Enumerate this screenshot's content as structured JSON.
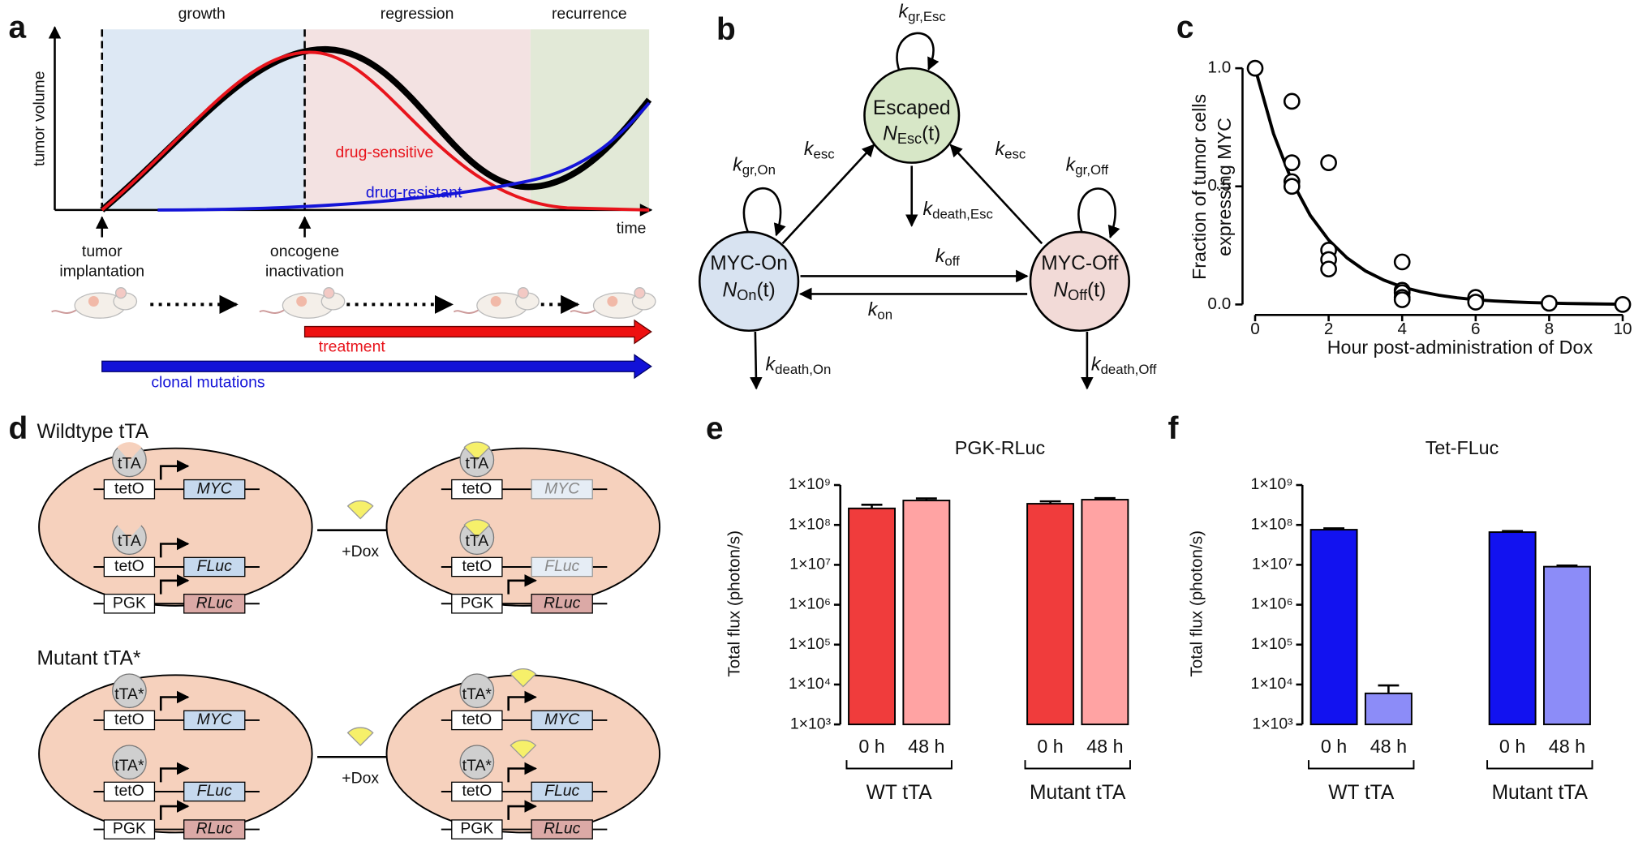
{
  "panel_a": {
    "letter": "a",
    "phases": [
      "growth",
      "regression",
      "recurrence"
    ],
    "y_label": "tumor volume",
    "x_label": "time",
    "curve_labels": [
      "drug-sensitive",
      "drug-resistant"
    ],
    "events": [
      [
        "tumor",
        "implantation"
      ],
      [
        "oncogene",
        "inactivation"
      ]
    ],
    "bars": [
      "treatment",
      "clonal mutations"
    ]
  },
  "panel_b": {
    "letter": "b",
    "nodes": [
      {
        "name": "Escaped",
        "pop": {
          "main": "N",
          "sub": "Esc",
          "tail": "(t)"
        }
      },
      {
        "name": "MYC-On",
        "pop": {
          "main": "N",
          "sub": "On",
          "tail": "(t)"
        }
      },
      {
        "name": "MYC-Off",
        "pop": {
          "main": "N",
          "sub": "Off",
          "tail": "(t)"
        }
      }
    ],
    "rates": [
      {
        "main": "k",
        "sub": "gr,Esc"
      },
      {
        "main": "k",
        "sub": "esc"
      },
      {
        "main": "k",
        "sub": "esc"
      },
      {
        "main": "k",
        "sub": "gr,On"
      },
      {
        "main": "k",
        "sub": "gr,Off"
      },
      {
        "main": "k",
        "sub": "death,Esc"
      },
      {
        "main": "k",
        "sub": "off"
      },
      {
        "main": "k",
        "sub": "on"
      },
      {
        "main": "k",
        "sub": "death,On"
      },
      {
        "main": "k",
        "sub": "death,Off"
      }
    ]
  },
  "panel_d": {
    "letter": "d",
    "dox": "+Dox",
    "groups": [
      {
        "title": "Wildtype tTA",
        "cells": [
          {
            "dox": false,
            "rows": [
              {
                "tf": "tTA",
                "notched": true,
                "promoter": "tetO",
                "gene": "MYC",
                "on": true,
                "color": "#c6d9ee"
              },
              {
                "tf": "tTA",
                "notched": true,
                "promoter": "tetO",
                "gene": "FLuc",
                "on": true,
                "color": "#c6d9ee"
              },
              {
                "promoter": "PGK",
                "gene": "RLuc",
                "on": true,
                "color": "#dba9a6"
              }
            ]
          },
          {
            "dox": true,
            "rows": [
              {
                "tf": "tTA",
                "notched": true,
                "promoter": "tetO",
                "gene": "MYC",
                "on": false,
                "color": "#c6d9ee"
              },
              {
                "tf": "tTA",
                "notched": true,
                "promoter": "tetO",
                "gene": "FLuc",
                "on": false,
                "color": "#c6d9ee"
              },
              {
                "promoter": "PGK",
                "gene": "RLuc",
                "on": true,
                "color": "#dba9a6"
              }
            ]
          }
        ]
      },
      {
        "title": "Mutant tTA*",
        "cells": [
          {
            "dox": false,
            "rows": [
              {
                "tf": "tTA*",
                "notched": false,
                "promoter": "tetO",
                "gene": "MYC",
                "on": true,
                "color": "#c6d9ee"
              },
              {
                "tf": "tTA*",
                "notched": false,
                "promoter": "tetO",
                "gene": "FLuc",
                "on": true,
                "color": "#c6d9ee"
              },
              {
                "promoter": "PGK",
                "gene": "RLuc",
                "on": true,
                "color": "#dba9a6"
              }
            ]
          },
          {
            "dox": true,
            "rows": [
              {
                "tf": "tTA*",
                "notched": false,
                "promoter": "tetO",
                "gene": "MYC",
                "on": true,
                "color": "#c6d9ee"
              },
              {
                "tf": "tTA*",
                "notched": false,
                "promoter": "tetO",
                "gene": "FLuc",
                "on": true,
                "color": "#c6d9ee"
              },
              {
                "promoter": "PGK",
                "gene": "RLuc",
                "on": true,
                "color": "#dba9a6"
              }
            ]
          }
        ]
      }
    ]
  },
  "chart_data": [
    {
      "type": "scatter",
      "label": "c",
      "x_label": "Hour post-administration of Dox",
      "y_label": [
        "Fraction of tumor cells",
        "expressing MYC"
      ],
      "xlim": [
        0,
        10
      ],
      "ylim": [
        0,
        1
      ],
      "xticks": [
        0,
        2,
        4,
        6,
        8,
        10
      ],
      "yticks": [
        {
          "value": 0,
          "label": "0.0"
        },
        {
          "value": 0.5,
          "label": "0.5"
        },
        {
          "value": 1,
          "label": "1.0"
        }
      ],
      "x": [
        0,
        1,
        1,
        1,
        1,
        2,
        2,
        2,
        2,
        4,
        4,
        4,
        4,
        4,
        6,
        6,
        8,
        10
      ],
      "values": [
        1.0,
        0.86,
        0.6,
        0.52,
        0.5,
        0.6,
        0.23,
        0.19,
        0.15,
        0.18,
        0.06,
        0.05,
        0.03,
        0.02,
        0.03,
        0.01,
        0.005,
        0.0
      ],
      "color": "#000000",
      "fit": {
        "x": [
          0,
          0.5,
          1,
          1.5,
          2,
          2.5,
          3,
          3.5,
          4,
          4.5,
          5,
          5.5,
          6,
          6.5,
          7,
          7.5,
          8,
          8.5,
          9,
          9.5,
          10
        ],
        "values": [
          1.0,
          0.723,
          0.522,
          0.377,
          0.273,
          0.197,
          0.142,
          0.103,
          0.074,
          0.054,
          0.039,
          0.028,
          0.02,
          0.015,
          0.011,
          0.008,
          0.006,
          0.004,
          0.003,
          0.002,
          0.001
        ]
      }
    },
    {
      "type": "bar",
      "label": "e",
      "title": "PGK-RLuc",
      "y_label": "Total flux (photon/s)",
      "log_scale": true,
      "ylim": [
        1000,
        1000000000
      ],
      "yticks": [
        {
          "value": 1000,
          "label": "1×10³"
        },
        {
          "value": 10000,
          "label": "1×10⁴"
        },
        {
          "value": 100000,
          "label": "1×10⁵"
        },
        {
          "value": 1000000,
          "label": "1×10⁶"
        },
        {
          "value": 10000000,
          "label": "1×10⁷"
        },
        {
          "value": 100000000,
          "label": "1×10⁸"
        },
        {
          "value": 1000000000,
          "label": "1×10⁹"
        }
      ],
      "categories": [
        "0 h",
        "48 h",
        "0 h",
        "48 h"
      ],
      "groups": [
        "WT tTA",
        "Mutant tTA"
      ],
      "values": [
        260000000,
        410000000,
        340000000,
        430000000
      ],
      "errors": [
        60000000,
        50000000,
        50000000,
        40000000
      ],
      "colors": [
        "#f03c3c",
        "#ffa3a3",
        "#f03c3c",
        "#ffa3a3"
      ]
    },
    {
      "type": "bar",
      "label": "f",
      "title": "Tet-FLuc",
      "y_label": "Total flux (photon/s)",
      "log_scale": true,
      "ylim": [
        1000,
        1000000000
      ],
      "yticks": [
        {
          "value": 1000,
          "label": "1×10³"
        },
        {
          "value": 10000,
          "label": "1×10⁴"
        },
        {
          "value": 100000,
          "label": "1×10⁵"
        },
        {
          "value": 1000000,
          "label": "1×10⁶"
        },
        {
          "value": 10000000,
          "label": "1×10⁷"
        },
        {
          "value": 100000000,
          "label": "1×10⁸"
        },
        {
          "value": 1000000000,
          "label": "1×10⁹"
        }
      ],
      "categories": [
        "0 h",
        "48 h",
        "0 h",
        "48 h"
      ],
      "groups": [
        "WT tTA",
        "Mutant tTA"
      ],
      "values": [
        76000000,
        6000,
        66000000,
        9000000
      ],
      "errors": [
        6000000,
        3500,
        4000000,
        600000
      ],
      "colors": [
        "#1212f0",
        "#8c8cf8",
        "#1212f0",
        "#8c8cf8"
      ]
    }
  ]
}
